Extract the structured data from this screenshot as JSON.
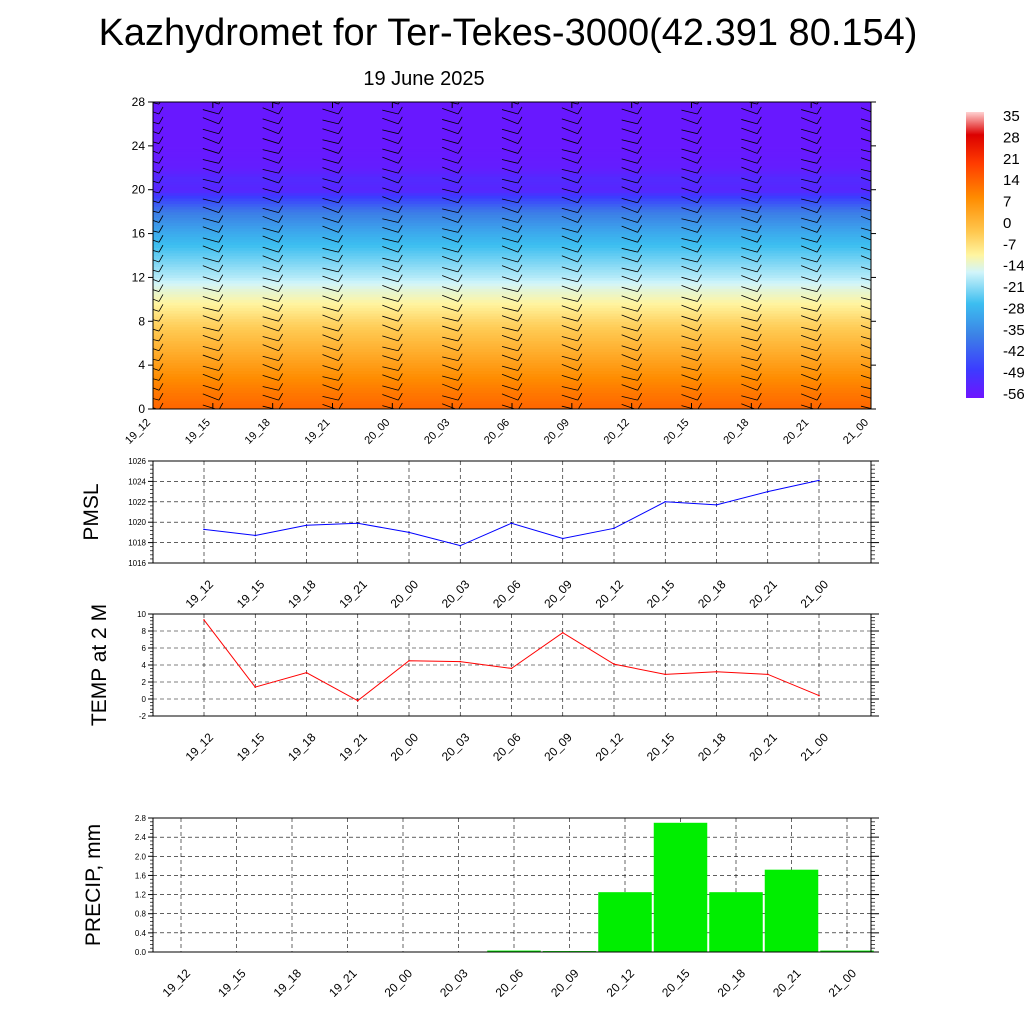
{
  "header": {
    "title": "Kazhydromet for Ter-Tekes-3000(42.391 80.154)",
    "date": "19 June 2025"
  },
  "time_labels": [
    "19_12",
    "19_15",
    "19_18",
    "19_21",
    "20_00",
    "20_03",
    "20_06",
    "20_09",
    "20_12",
    "20_15",
    "20_18",
    "20_21",
    "21_00"
  ],
  "chart_data": [
    {
      "type": "heatmap",
      "y_ticks": [
        "0",
        "4",
        "8",
        "12",
        "16",
        "20",
        "24",
        "28"
      ],
      "ylim": [
        0,
        28
      ],
      "x_tick_labels": [
        "19_12",
        "19_15",
        "19_18",
        "19_21",
        "20_00",
        "20_03",
        "20_06",
        "20_09",
        "20_12",
        "20_15",
        "20_18",
        "20_21",
        "21_00"
      ],
      "colorbar_labels": [
        "35",
        "28",
        "21",
        "14",
        "7",
        "0",
        "-7",
        "-14",
        "-21",
        "-28",
        "-35",
        "-42",
        "-49",
        "-56"
      ],
      "colorbar_range": [
        -60,
        35
      ],
      "levels": [
        0,
        2,
        4,
        6,
        8,
        10,
        11,
        12,
        14,
        16,
        18,
        19,
        20,
        21,
        22,
        24,
        28
      ],
      "temperature_profile": [
        12,
        8,
        3,
        -2,
        -7,
        -13,
        -16,
        -20,
        -26,
        -32,
        -40,
        -48,
        -56,
        -55,
        -58,
        -59,
        -59
      ],
      "has_wind_barbs": true
    },
    {
      "type": "line",
      "ylabel": "PMSL",
      "ylim": [
        1016,
        1026
      ],
      "y_ticks": [
        "1016",
        "1018",
        "1020",
        "1022",
        "1024",
        "1026"
      ],
      "categories": [
        "19_12",
        "19_15",
        "19_18",
        "19_21",
        "20_00",
        "20_03",
        "20_06",
        "20_09",
        "20_12",
        "20_15",
        "20_18",
        "20_21",
        "21_00"
      ],
      "series": [
        {
          "color": "#0000ff",
          "values": [
            1019.3,
            1018.7,
            1019.7,
            1019.9,
            1019.0,
            1017.7,
            1019.9,
            1018.4,
            1019.4,
            1022.0,
            1021.7,
            1023.0,
            1024.1
          ]
        }
      ],
      "grid": true
    },
    {
      "type": "line",
      "ylabel": "TEMP at 2 M",
      "ylim": [
        -2,
        10
      ],
      "y_ticks": [
        "-2",
        "0",
        "2",
        "4",
        "6",
        "8",
        "10"
      ],
      "categories": [
        "19_12",
        "19_15",
        "19_18",
        "19_21",
        "20_00",
        "20_03",
        "20_06",
        "20_09",
        "20_12",
        "20_15",
        "20_18",
        "20_21",
        "21_00"
      ],
      "series": [
        {
          "color": "#ff0000",
          "values": [
            9.3,
            1.4,
            3.1,
            -0.2,
            4.5,
            4.4,
            3.6,
            7.8,
            4.1,
            2.9,
            3.2,
            2.9,
            0.4
          ]
        }
      ],
      "grid": true
    },
    {
      "type": "bar",
      "ylabel": "PRECIP, mm",
      "ylim": [
        0,
        2.8
      ],
      "y_ticks": [
        "0.0",
        "0.4",
        "0.8",
        "1.2",
        "1.6",
        "2.0",
        "2.4",
        "2.8"
      ],
      "categories": [
        "19_12",
        "19_15",
        "19_18",
        "19_21",
        "20_00",
        "20_03",
        "20_06",
        "20_09",
        "20_12",
        "20_15",
        "20_18",
        "20_21",
        "21_00"
      ],
      "series": [
        {
          "color": "#00ee00",
          "values": [
            0.0,
            0.0,
            0.0,
            0.0,
            0.0,
            0.0,
            0.03,
            0.02,
            1.25,
            2.7,
            1.25,
            1.72,
            0.03
          ]
        }
      ],
      "grid": true
    }
  ]
}
